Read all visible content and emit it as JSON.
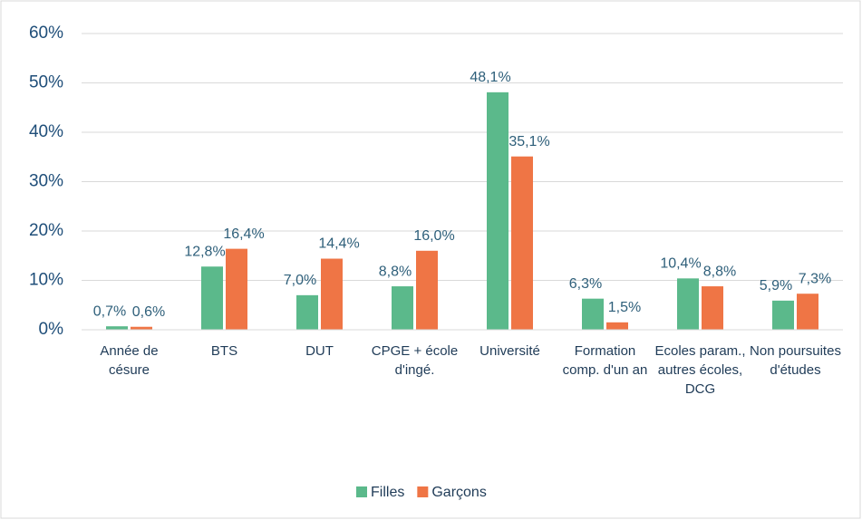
{
  "chart_data": {
    "type": "bar",
    "categories": [
      "Année de césure",
      "BTS",
      "DUT",
      "CPGE + école d'ingé.",
      "Université",
      "Formation comp. d'un an",
      "Ecoles param., autres écoles, DCG",
      "Non poursuites d'études"
    ],
    "series": [
      {
        "name": "Filles",
        "color": "#5bb98b",
        "values": [
          0.7,
          12.8,
          7.0,
          8.8,
          48.1,
          6.3,
          10.4,
          5.9
        ],
        "value_labels": [
          "0,7%",
          "12,8%",
          "7,0%",
          "8,8%",
          "48,1%",
          "6,3%",
          "10,4%",
          "5,9%"
        ]
      },
      {
        "name": "Garçons",
        "color": "#ef7545",
        "values": [
          0.6,
          16.4,
          14.4,
          16.0,
          35.1,
          1.5,
          8.8,
          7.3
        ],
        "value_labels": [
          "0,6%",
          "16,4%",
          "14,4%",
          "16,0%",
          "35,1%",
          "1,5%",
          "8,8%",
          "7,3%"
        ]
      }
    ],
    "ylim": [
      0,
      60
    ],
    "yticks": [
      {
        "value": 0,
        "label": "0%"
      },
      {
        "value": 10,
        "label": "10%"
      },
      {
        "value": 20,
        "label": "20%"
      },
      {
        "value": 30,
        "label": "30%"
      },
      {
        "value": 40,
        "label": "40%"
      },
      {
        "value": 50,
        "label": "50%"
      },
      {
        "value": 60,
        "label": "60%"
      }
    ],
    "grid": true,
    "legend": "bottom"
  }
}
